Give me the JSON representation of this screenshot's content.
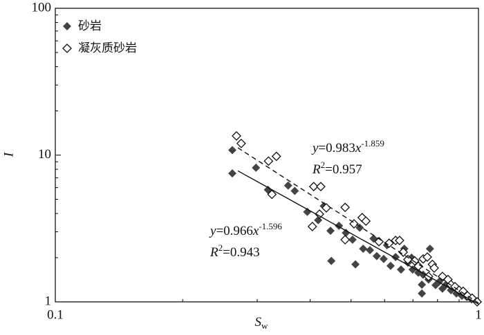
{
  "chart_data": {
    "type": "scatter",
    "x_label": "S",
    "x_label_sub": "w",
    "y_label": "I",
    "xscale": "log",
    "yscale": "log",
    "xlim": [
      0.1,
      1
    ],
    "ylim": [
      1,
      100
    ],
    "xticks": [
      0.1,
      1
    ],
    "yticks": [
      1,
      10,
      100
    ],
    "xminorticks": [
      0.2,
      0.3,
      0.4,
      0.5,
      0.6,
      0.7,
      0.8,
      0.9
    ],
    "yminorticks": [
      2,
      3,
      4,
      5,
      6,
      7,
      8,
      9,
      20,
      30,
      40,
      50,
      60,
      70,
      80,
      90
    ],
    "legend": "upper left",
    "series": [
      {
        "name": "砂岩",
        "color": "#444444",
        "marker": "filled",
        "x": [
          0.262,
          0.262,
          0.298,
          0.318,
          0.355,
          0.368,
          0.394,
          0.418,
          0.431,
          0.447,
          0.449,
          0.468,
          0.486,
          0.504,
          0.512,
          0.524,
          0.534,
          0.554,
          0.565,
          0.575,
          0.597,
          0.608,
          0.62,
          0.637,
          0.656,
          0.668,
          0.681,
          0.699,
          0.721,
          0.735,
          0.74,
          0.762,
          0.768,
          0.792,
          0.807,
          0.822,
          0.838,
          0.861,
          0.887,
          0.914,
          0.938,
          0.963,
          0.993,
          0.735,
          0.695
        ],
        "values": [
          10.8,
          7.5,
          8.2,
          5.8,
          6.2,
          5.7,
          4.1,
          3.6,
          4.5,
          3.05,
          1.9,
          3.3,
          2.95,
          2.65,
          1.8,
          3.2,
          2.3,
          2.25,
          2.7,
          2.05,
          1.96,
          2.43,
          1.76,
          2.02,
          1.66,
          2.3,
          1.85,
          1.66,
          1.58,
          1.31,
          1.53,
          1.42,
          2.3,
          1.3,
          1.37,
          1.23,
          1.31,
          1.2,
          1.14,
          1.1,
          1.08,
          1.04,
          1.0,
          1.14,
          2.0
        ]
      },
      {
        "name": "凝灰质砂岩",
        "color": "#111111",
        "marker": "open",
        "x": [
          0.268,
          0.275,
          0.319,
          0.333,
          0.325,
          0.408,
          0.424,
          0.405,
          0.421,
          0.437,
          0.484,
          0.484,
          0.508,
          0.531,
          0.542,
          0.582,
          0.615,
          0.637,
          0.651,
          0.664,
          0.681,
          0.707,
          0.74,
          0.757,
          0.778,
          0.786,
          0.822,
          0.847,
          0.861,
          0.88,
          0.9,
          0.92,
          0.942,
          0.966,
          0.993,
          0.762,
          0.721
        ],
        "values": [
          13.5,
          12.0,
          9.1,
          9.8,
          5.4,
          6.1,
          6.1,
          3.26,
          3.96,
          4.37,
          4.4,
          2.65,
          3.4,
          3.75,
          3.55,
          2.57,
          2.51,
          2.62,
          2.62,
          2.18,
          1.94,
          1.9,
          1.96,
          2.02,
          1.8,
          1.7,
          1.49,
          1.42,
          1.31,
          1.27,
          1.2,
          1.18,
          1.1,
          1.06,
          1.0,
          1.49,
          1.75
        ]
      }
    ],
    "fit_text": {
      "y": "y",
      "eq": "=",
      "x": "x",
      "r": "R",
      "sup": "2"
    },
    "fits": [
      {
        "a": 0.983,
        "b": -1.859,
        "r2": 0.957,
        "dash": true,
        "xrange": [
          0.27,
          1
        ]
      },
      {
        "a": 0.966,
        "b": -1.596,
        "r2": 0.943,
        "dash": false,
        "xrange": [
          0.27,
          1
        ]
      }
    ]
  }
}
